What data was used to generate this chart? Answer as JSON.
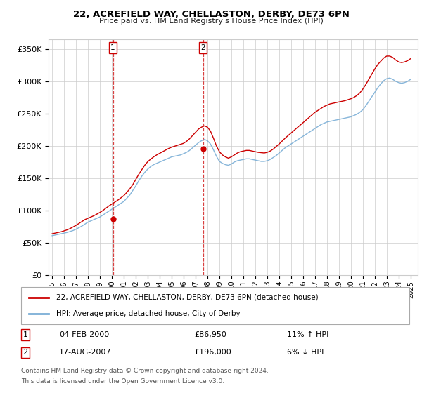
{
  "title": "22, ACREFIELD WAY, CHELLASTON, DERBY, DE73 6PN",
  "subtitle": "Price paid vs. HM Land Registry's House Price Index (HPI)",
  "ylabel_ticks": [
    "£0",
    "£50K",
    "£100K",
    "£150K",
    "£200K",
    "£250K",
    "£300K",
    "£350K"
  ],
  "ytick_values": [
    0,
    50000,
    100000,
    150000,
    200000,
    250000,
    300000,
    350000
  ],
  "ylim": [
    0,
    365000
  ],
  "sale1_price": 86950,
  "sale1_x": 2000.09,
  "sale1_date_str": "04-FEB-2000",
  "sale1_price_str": "£86,950",
  "sale1_hpi_str": "11% ↑ HPI",
  "sale2_price": 196000,
  "sale2_x": 2007.62,
  "sale2_date_str": "17-AUG-2007",
  "sale2_price_str": "£196,000",
  "sale2_hpi_str": "6% ↓ HPI",
  "legend_line1": "22, ACREFIELD WAY, CHELLASTON, DERBY, DE73 6PN (detached house)",
  "legend_line2": "HPI: Average price, detached house, City of Derby",
  "footnote1": "Contains HM Land Registry data © Crown copyright and database right 2024.",
  "footnote2": "This data is licensed under the Open Government Licence v3.0.",
  "line_color_red": "#cc0000",
  "line_color_blue": "#7aaed6",
  "background_color": "#ffffff",
  "grid_color": "#cccccc",
  "xlim_left": 1994.7,
  "xlim_right": 2025.6
}
